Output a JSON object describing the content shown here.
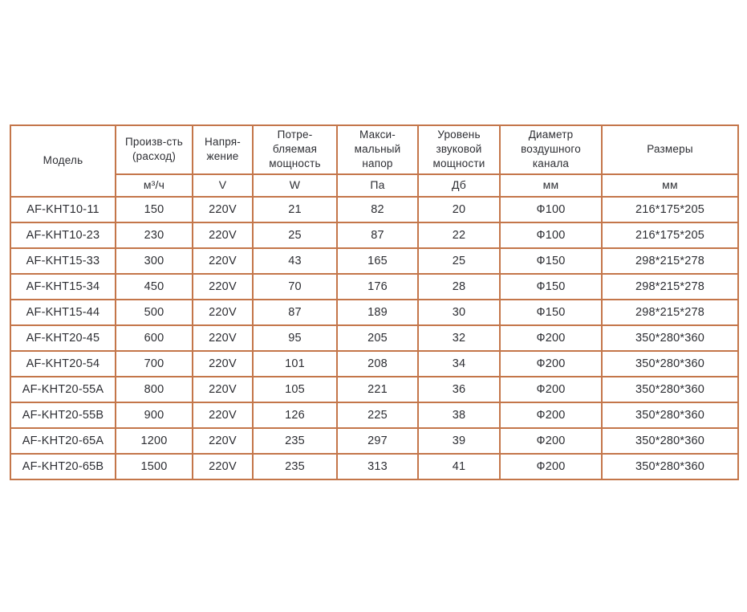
{
  "colors": {
    "table_border": "#c4764a",
    "text": "#2d2e33",
    "background": "#ffffff"
  },
  "table": {
    "headers": {
      "model": "Модель",
      "flow": "Произв-сть\n(расход)",
      "voltage": "Напря-\nжение",
      "power": "Потре-\nбляемая\nмощность",
      "pressure": "Макси-\nмальный\nнапор",
      "noise": "Уровень\nзвуковой\nмощности",
      "diameter": "Диаметр\nвоздушного\nканала",
      "dimensions": "Размеры"
    },
    "units": {
      "flow": "м³/ч",
      "voltage": "V",
      "power": "W",
      "pressure": "Па",
      "noise": "Дб",
      "diameter": "мм",
      "dimensions": "мм"
    },
    "rows": [
      {
        "model": "AF-KHT10-11",
        "flow": "150",
        "voltage": "220V",
        "power": "21",
        "pressure": "82",
        "noise": "20",
        "diameter": "Ф100",
        "dimensions": "216*175*205"
      },
      {
        "model": "AF-KHT10-23",
        "flow": "230",
        "voltage": "220V",
        "power": "25",
        "pressure": "87",
        "noise": "22",
        "diameter": "Ф100",
        "dimensions": "216*175*205"
      },
      {
        "model": "AF-KHT15-33",
        "flow": "300",
        "voltage": "220V",
        "power": "43",
        "pressure": "165",
        "noise": "25",
        "diameter": "Ф150",
        "dimensions": "298*215*278"
      },
      {
        "model": "AF-KHT15-34",
        "flow": "450",
        "voltage": "220V",
        "power": "70",
        "pressure": "176",
        "noise": "28",
        "diameter": "Ф150",
        "dimensions": "298*215*278"
      },
      {
        "model": "AF-KHT15-44",
        "flow": "500",
        "voltage": "220V",
        "power": "87",
        "pressure": "189",
        "noise": "30",
        "diameter": "Ф150",
        "dimensions": "298*215*278"
      },
      {
        "model": "AF-KHT20-45",
        "flow": "600",
        "voltage": "220V",
        "power": "95",
        "pressure": "205",
        "noise": "32",
        "diameter": "Ф200",
        "dimensions": "350*280*360"
      },
      {
        "model": "AF-KHT20-54",
        "flow": "700",
        "voltage": "220V",
        "power": "101",
        "pressure": "208",
        "noise": "34",
        "diameter": "Ф200",
        "dimensions": "350*280*360"
      },
      {
        "model": "AF-KHT20-55A",
        "flow": "800",
        "voltage": "220V",
        "power": "105",
        "pressure": "221",
        "noise": "36",
        "diameter": "Ф200",
        "dimensions": "350*280*360"
      },
      {
        "model": "AF-KHT20-55B",
        "flow": "900",
        "voltage": "220V",
        "power": "126",
        "pressure": "225",
        "noise": "38",
        "diameter": "Ф200",
        "dimensions": "350*280*360"
      },
      {
        "model": "AF-KHT20-65A",
        "flow": "1200",
        "voltage": "220V",
        "power": "235",
        "pressure": "297",
        "noise": "39",
        "diameter": "Ф200",
        "dimensions": "350*280*360"
      },
      {
        "model": "AF-KHT20-65B",
        "flow": "1500",
        "voltage": "220V",
        "power": "235",
        "pressure": "313",
        "noise": "41",
        "diameter": "Ф200",
        "dimensions": "350*280*360"
      }
    ]
  }
}
